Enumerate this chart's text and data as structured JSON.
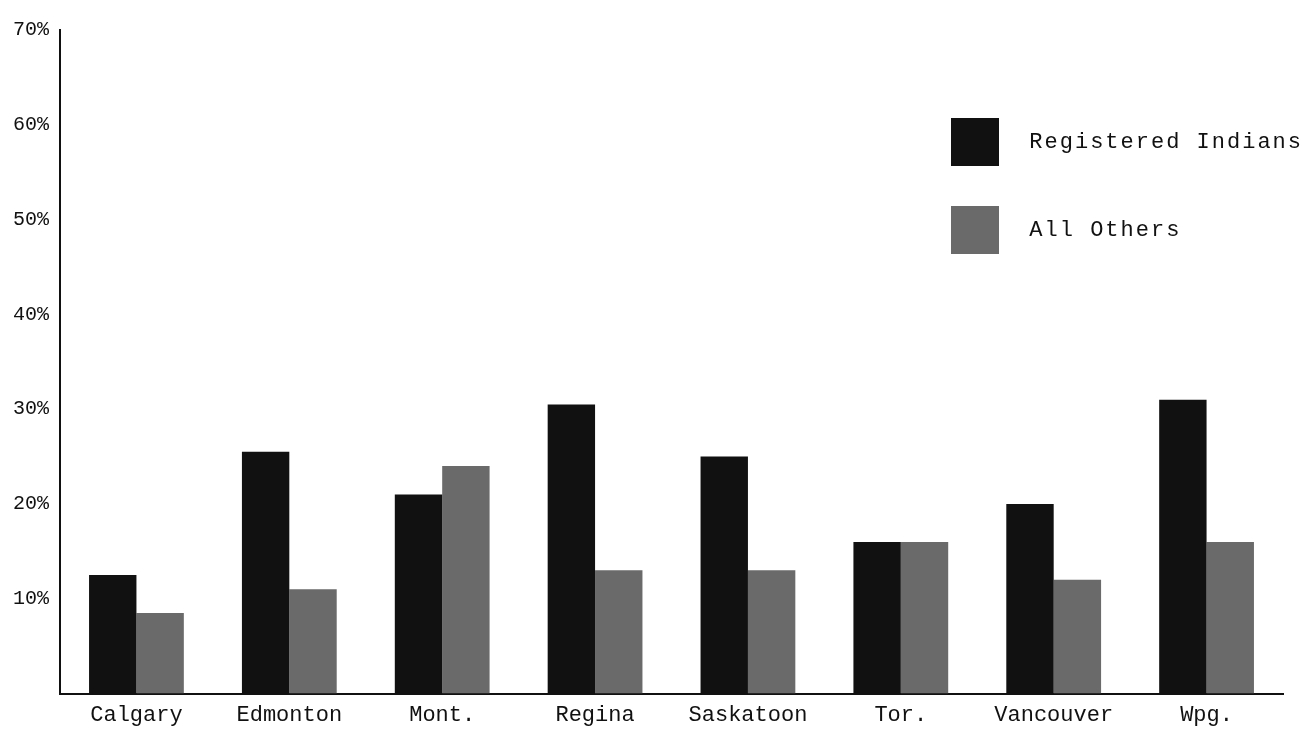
{
  "chart_data": {
    "type": "bar",
    "categories": [
      "Calgary",
      "Edmonton",
      "Mont.",
      "Regina",
      "Saskatoon",
      "Tor.",
      "Vancouver",
      "Wpg."
    ],
    "series": [
      {
        "name": "Registered Indians",
        "color": "#111111",
        "values": [
          12.5,
          25.5,
          21,
          30.5,
          25,
          16,
          20,
          31
        ]
      },
      {
        "name": "All Others",
        "color": "#6a6a6a",
        "values": [
          8.5,
          11,
          24,
          13,
          13,
          16,
          12,
          16
        ]
      }
    ],
    "ylim": [
      0,
      70
    ],
    "yticks": [
      {
        "value": 10,
        "label": "10%"
      },
      {
        "value": 20,
        "label": "20%"
      },
      {
        "value": 30,
        "label": "30%"
      },
      {
        "value": 40,
        "label": "40%"
      },
      {
        "value": 50,
        "label": "50%"
      },
      {
        "value": 60,
        "label": "60%"
      },
      {
        "value": 70,
        "label": "70%"
      }
    ],
    "grid": false,
    "legend": "top right"
  }
}
